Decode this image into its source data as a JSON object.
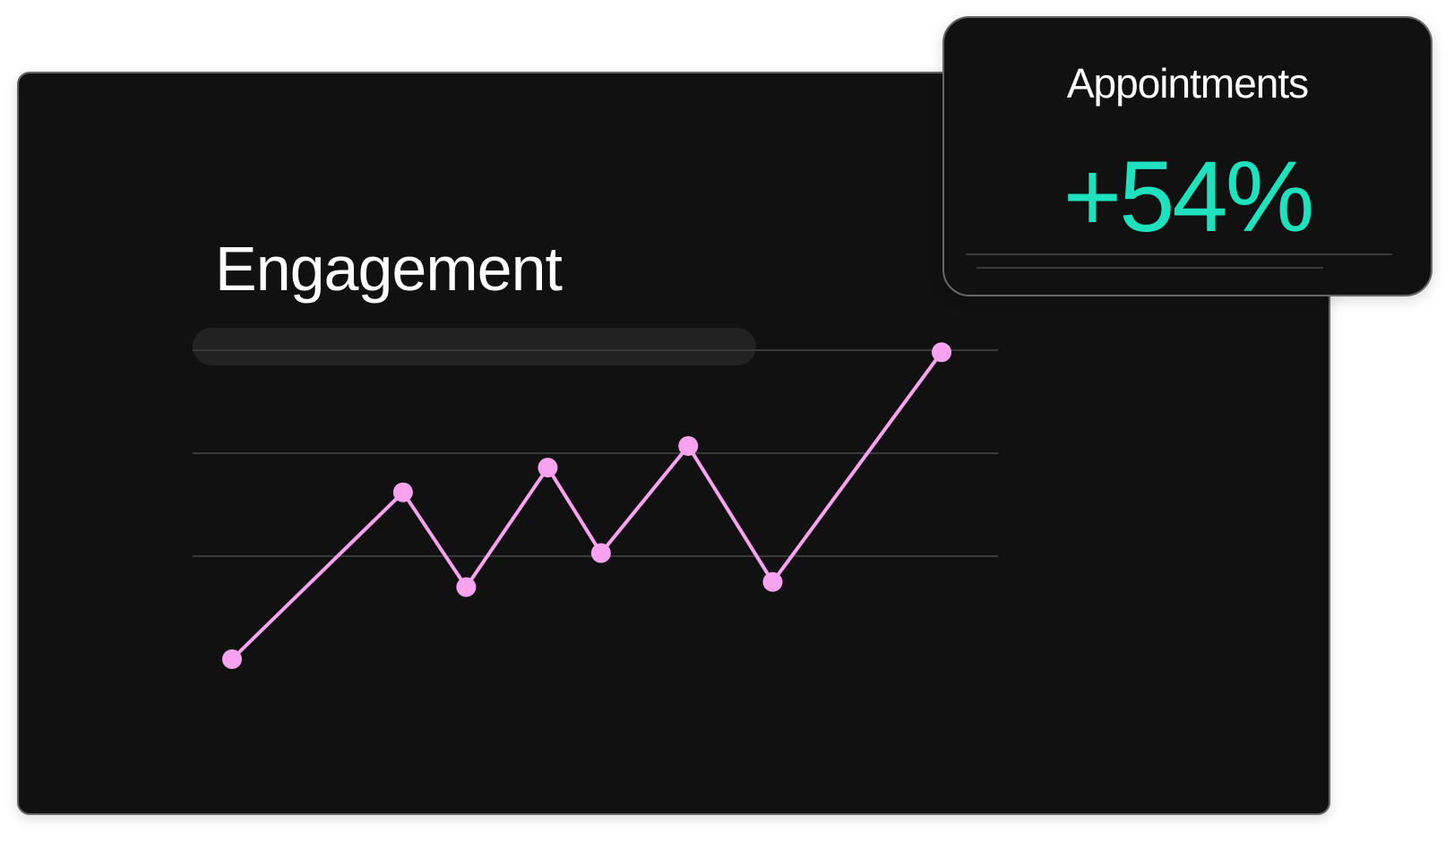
{
  "chart_data": {
    "type": "line",
    "title": "Engagement",
    "x": [
      0,
      24.1,
      33,
      44.5,
      52,
      64.3,
      76.2,
      100
    ],
    "values": [
      0,
      1.62,
      0.7,
      1.86,
      1.03,
      2.07,
      0.75,
      2.98
    ],
    "gridlines": [
      1,
      2,
      3
    ],
    "grid": true,
    "xlim": [
      0,
      100
    ],
    "line_color": "#f7a3ef"
  },
  "kpi": {
    "label": "Appointments",
    "value": "+54%",
    "value_color": "#1de2bd"
  },
  "colors": {
    "card_bg": "#111111",
    "border": "#666666",
    "grid": "#3a3a3a"
  }
}
